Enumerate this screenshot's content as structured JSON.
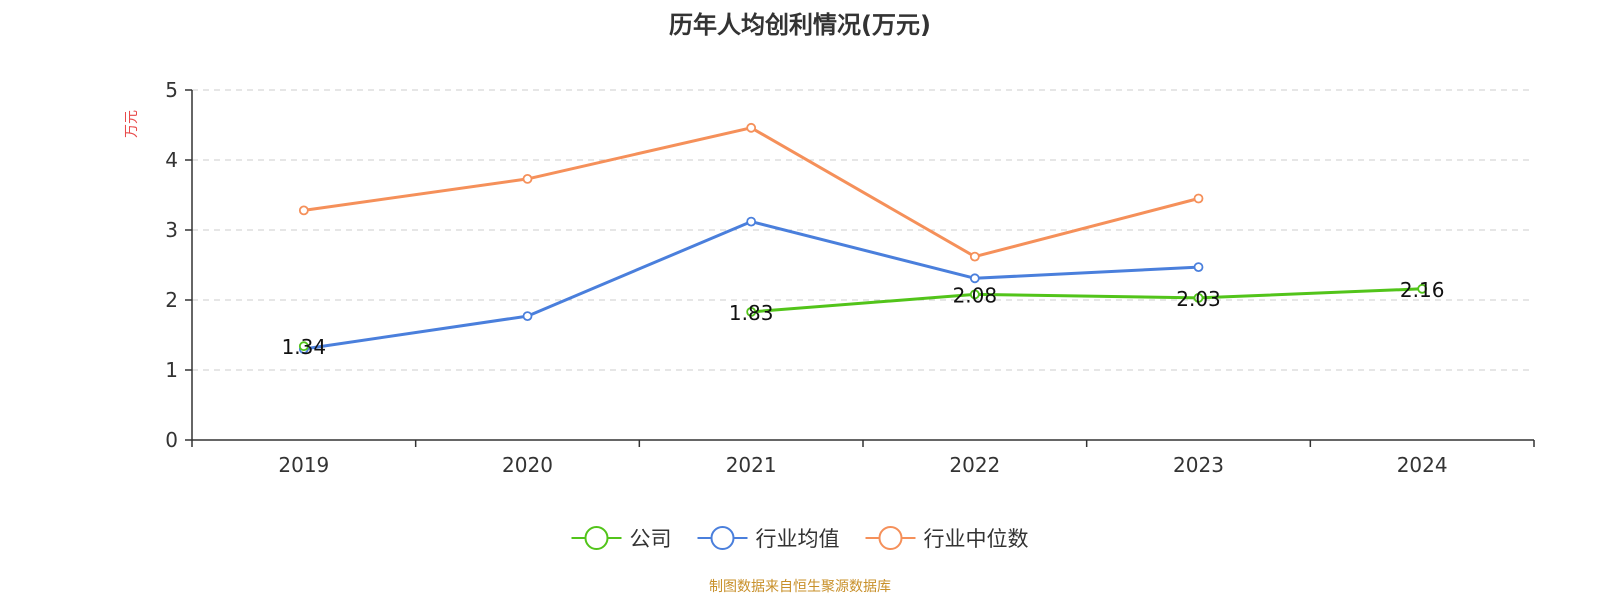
{
  "chart_data": {
    "type": "line",
    "title": "历年人均创利情况(万元)",
    "ylabel": "万元",
    "xlabel": "",
    "ylim": [
      0,
      5
    ],
    "yticks": [
      0,
      1,
      2,
      3,
      4,
      5
    ],
    "grid": true,
    "legend_position": "bottom",
    "categories": [
      "2019",
      "2020",
      "2021",
      "2022",
      "2023",
      "2024"
    ],
    "series": [
      {
        "name": "公司",
        "color": "#52c41a",
        "values": [
          1.34,
          null,
          1.83,
          2.08,
          2.03,
          2.16
        ],
        "labels": [
          "1.34",
          "",
          "1.83",
          "2.08",
          "2.03",
          "2.16"
        ]
      },
      {
        "name": "行业均值",
        "color": "#4a7fdc",
        "values": [
          1.3,
          1.77,
          3.12,
          2.31,
          2.47,
          null
        ]
      },
      {
        "name": "行业中位数",
        "color": "#f5905a",
        "values": [
          3.28,
          3.73,
          4.46,
          2.62,
          3.45,
          null
        ]
      }
    ],
    "source": "制图数据来自恒生聚源数据库"
  }
}
